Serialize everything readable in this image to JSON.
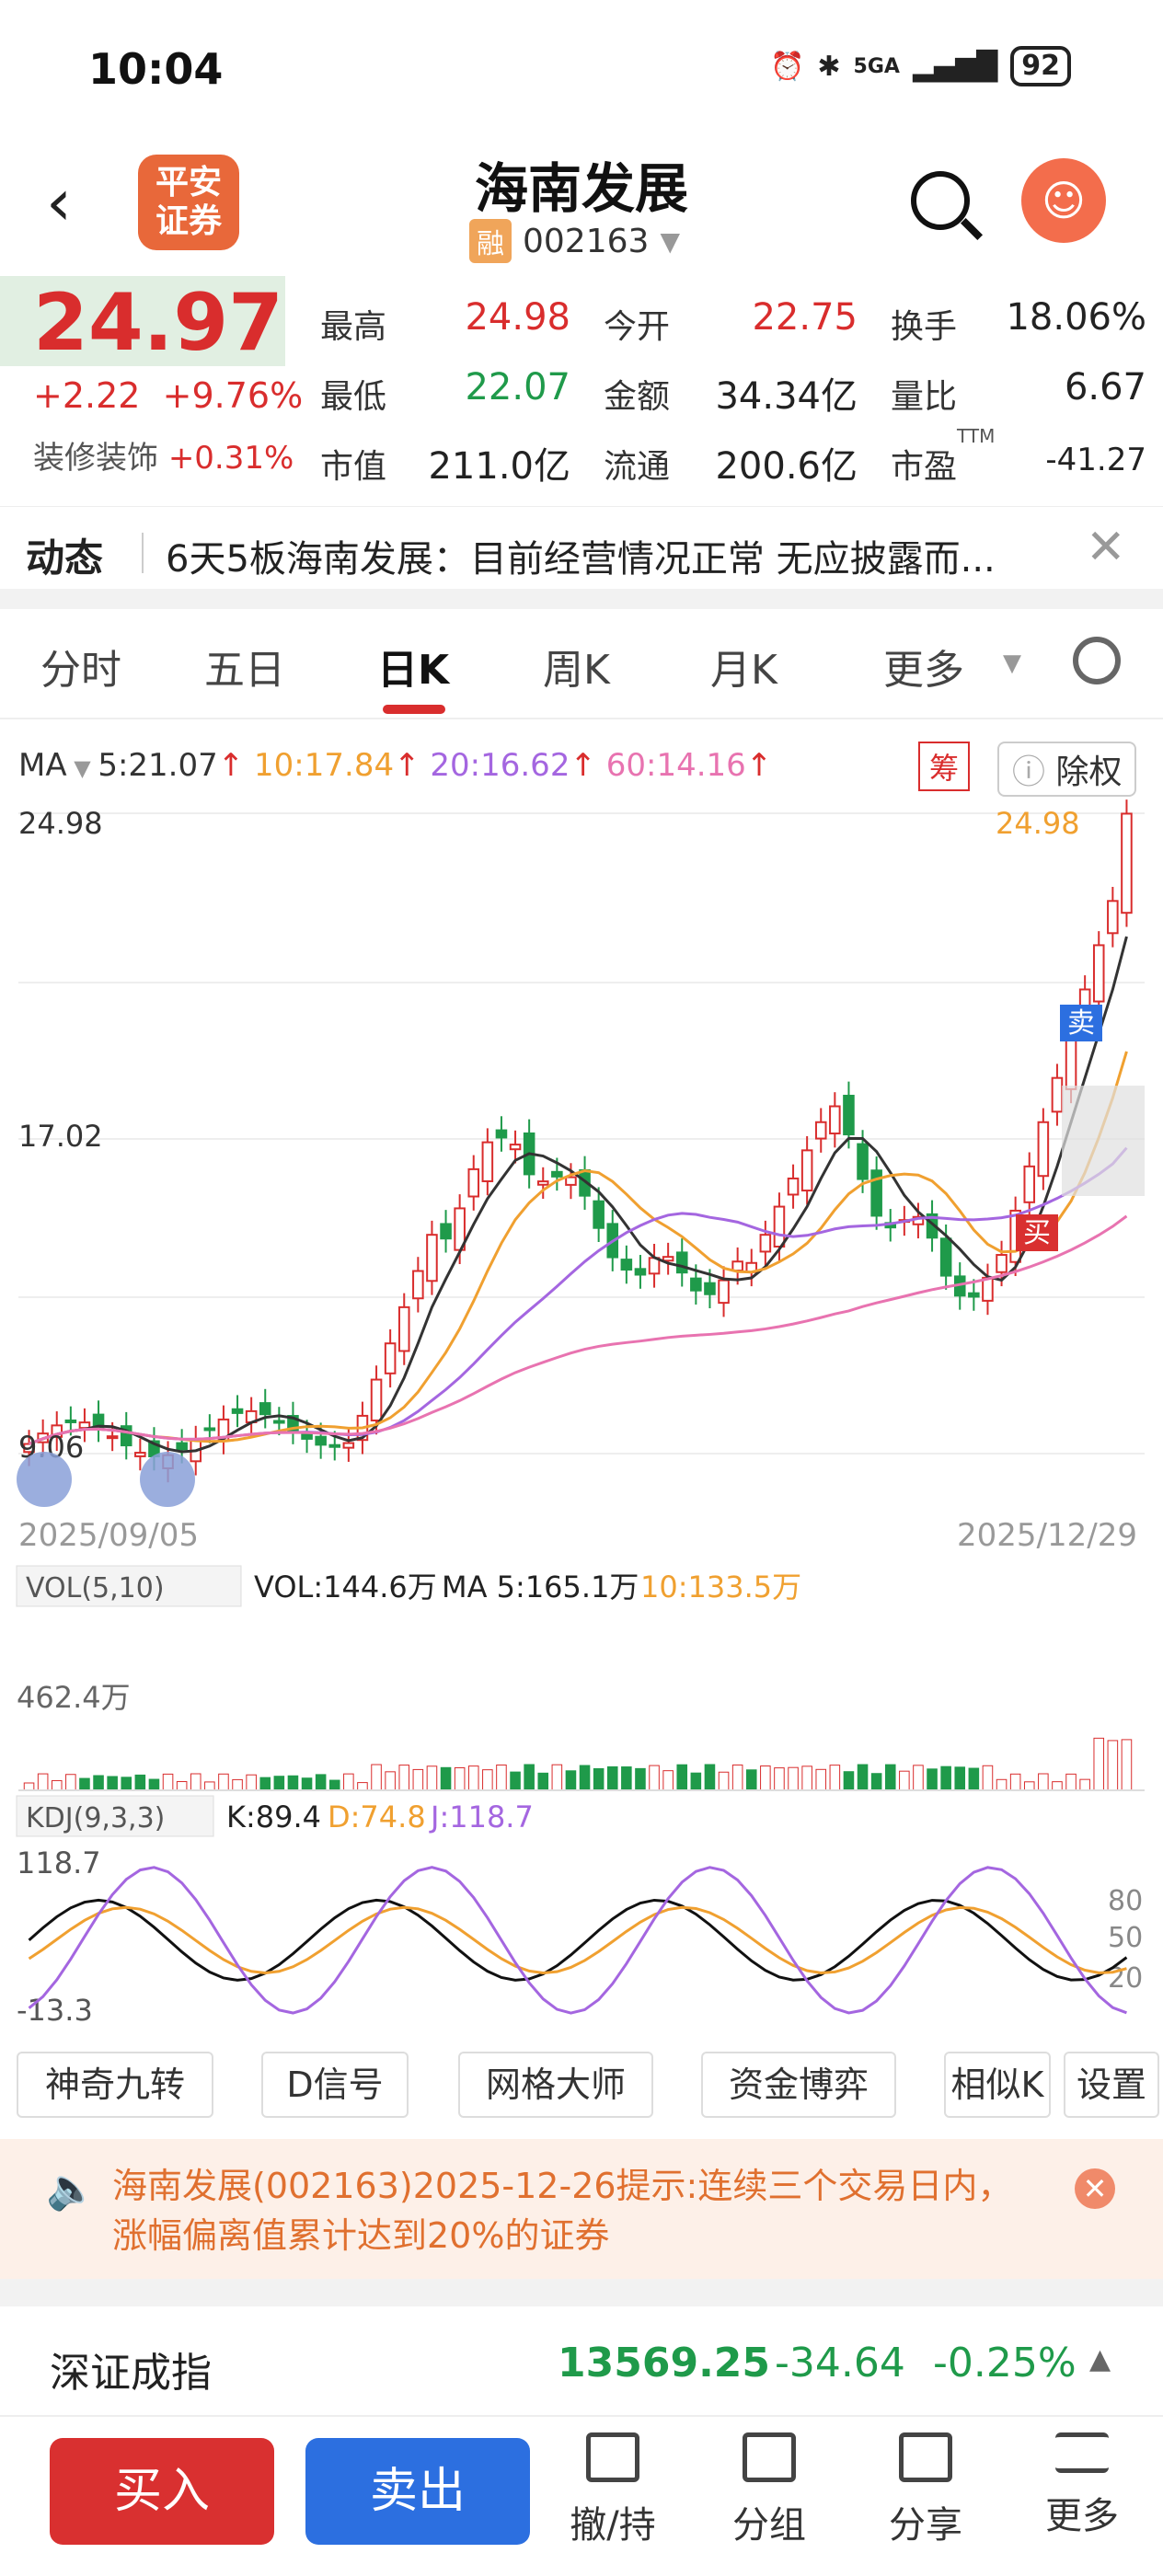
{
  "status": {
    "time": "10:04",
    "network": "5GA",
    "battery": "92"
  },
  "header": {
    "back_icon": "back-arrow-icon",
    "broker_logo": "平安证券",
    "stock_name": "海南发展",
    "margin_tag": "融",
    "stock_code": "002163"
  },
  "quote": {
    "price": "24.97",
    "change": "+2.22",
    "change_pct": "+9.76%",
    "sector_name": "装修装饰",
    "sector_pct": "+0.31%",
    "stats": [
      {
        "label": "最高",
        "value": "24.98"
      },
      {
        "label": "今开",
        "value": "22.75"
      },
      {
        "label": "换手",
        "value": "18.06%"
      },
      {
        "label": "最低",
        "value": "22.07"
      },
      {
        "label": "金额",
        "value": "34.34亿"
      },
      {
        "label": "量比",
        "value": "6.67"
      },
      {
        "label": "市值",
        "value": "211.0亿"
      },
      {
        "label": "流通",
        "value": "200.6亿"
      },
      {
        "label": "市盈",
        "value": "-41.27",
        "sup": "TTM"
      }
    ]
  },
  "news": {
    "label": "动态",
    "text": "6天5板海南发展：目前经营情况正常 无应披露而..."
  },
  "tabs": [
    "分时",
    "五日",
    "日K",
    "周K",
    "月K",
    "更多"
  ],
  "active_tab": "日K",
  "ma": {
    "label": "MA",
    "ma5": "5:21.07",
    "ma10": "10:17.84",
    "ma20": "20:16.62",
    "ma60": "60:14.16",
    "chip_btn": "筹",
    "exright_btn": "除权"
  },
  "kchart": {
    "top_price": "24.98",
    "mid_price": "17.02",
    "low_price": "9.06",
    "high_label": "24.98",
    "start_date": "2025/09/05",
    "end_date": "2025/12/29",
    "sell_tag": "卖",
    "buy_tag": "买",
    "low_label": "9.06"
  },
  "vol": {
    "label": "VOL(5,10)",
    "vol": "VOL:144.6万",
    "ma5": "MA 5:165.1万",
    "ma10": "10:133.5万",
    "max": "462.4万"
  },
  "kdj": {
    "label": "KDJ(9,3,3)",
    "k": "K:89.4",
    "d": "D:74.8",
    "j": "J:118.7",
    "max": "118.7",
    "min": "-13.3",
    "levels": [
      "80",
      "50",
      "20"
    ]
  },
  "tools": [
    "神奇九转",
    "D信号",
    "网格大师",
    "资金博弈",
    "相似K",
    "设置"
  ],
  "notice": {
    "text": "海南发展(002163)2025-12-26提示:连续三个交易日内，涨幅偏离值累计达到20%的证券"
  },
  "index": {
    "name": "深证成指",
    "value": "13569.25",
    "change": "-34.64",
    "pct": "-0.25%"
  },
  "bottom": {
    "buy": "买入",
    "sell": "卖出",
    "items": [
      "撤/持",
      "分组",
      "分享",
      "更多"
    ]
  },
  "colors": {
    "up": "#d92d2d",
    "down": "#1f9a4a",
    "ma5": "#333333",
    "ma10": "#f0a030",
    "ma20": "#a466e0",
    "ma60": "#e873b0"
  }
}
